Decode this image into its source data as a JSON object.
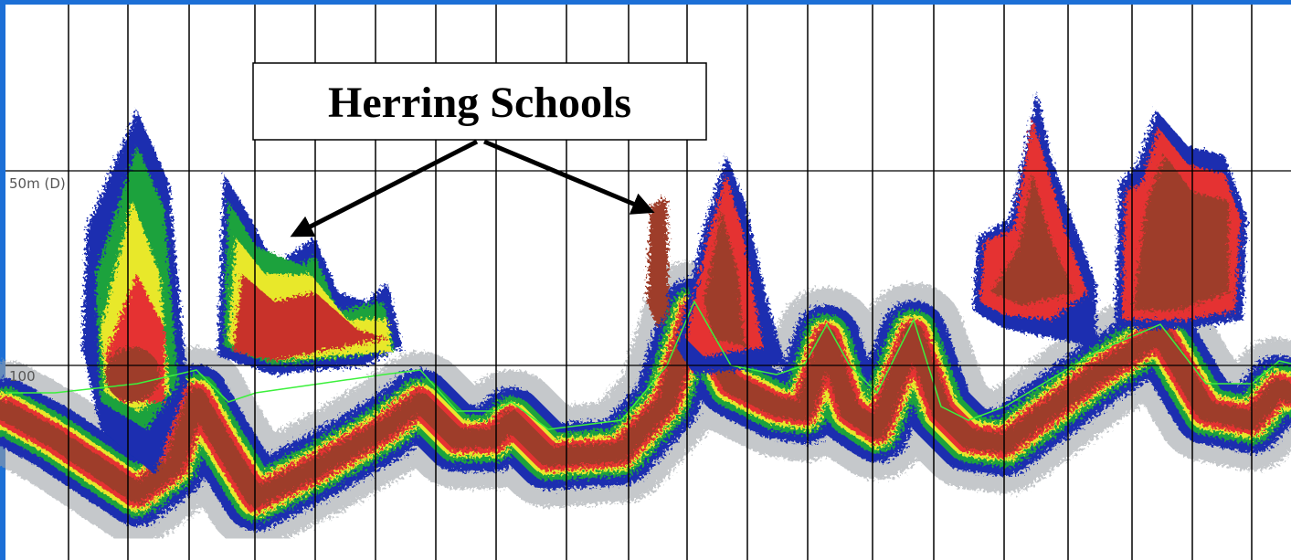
{
  "echogram": {
    "callout": "Herring Schools",
    "depth_labels": [
      "50m (D)",
      "100"
    ]
  }
}
